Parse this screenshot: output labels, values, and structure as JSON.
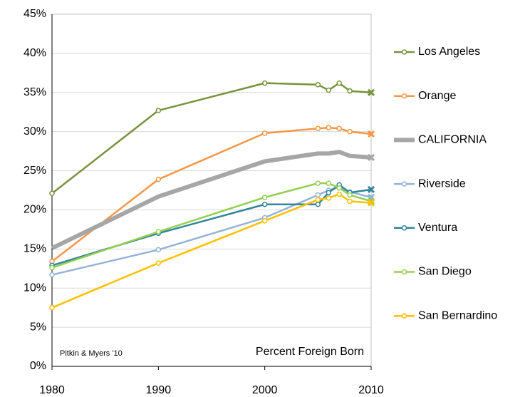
{
  "chart_data": {
    "type": "line",
    "annotations": [
      "Pitkin & Myers '10",
      "Percent Foreign Born"
    ],
    "x": [
      1980,
      1990,
      2000,
      2005,
      2006,
      2007,
      2008,
      2010
    ],
    "xlim": [
      1980,
      2010
    ],
    "xticks": [
      1980,
      1990,
      2000,
      2010
    ],
    "ylim": [
      0,
      45
    ],
    "yticks": [
      {
        "value": 0,
        "label": "0%"
      },
      {
        "value": 5,
        "label": "5%"
      },
      {
        "value": 10,
        "label": "10%"
      },
      {
        "value": 15,
        "label": "15%"
      },
      {
        "value": 20,
        "label": "20%"
      },
      {
        "value": 25,
        "label": "25%"
      },
      {
        "value": 30,
        "label": "30%"
      },
      {
        "value": 35,
        "label": "35%"
      },
      {
        "value": 40,
        "label": "40%"
      },
      {
        "value": 45,
        "label": "45%"
      }
    ],
    "grid": true,
    "legend": "right",
    "series": [
      {
        "name": "Los Angeles",
        "color": "#77933c",
        "line_width": 2.5,
        "values": [
          22.1,
          32.7,
          36.2,
          36.0,
          35.3,
          36.2,
          35.2,
          35.0
        ]
      },
      {
        "name": "Orange",
        "color": "#f79646",
        "line_width": 2.5,
        "values": [
          13.4,
          23.9,
          29.8,
          30.4,
          30.5,
          30.4,
          30.0,
          29.7
        ]
      },
      {
        "name": "CALIFORNIA",
        "color": "#a6a6a6",
        "line_width": 6,
        "values": [
          15.1,
          21.7,
          26.2,
          27.2,
          27.2,
          27.4,
          26.9,
          26.7
        ]
      },
      {
        "name": "Riverside",
        "color": "#95b3d7",
        "line_width": 2.5,
        "values": [
          11.7,
          14.9,
          19.0,
          21.9,
          22.5,
          22.9,
          22.3,
          21.6
        ]
      },
      {
        "name": "Ventura",
        "color": "#31859c",
        "line_width": 2.5,
        "values": [
          12.9,
          17.0,
          20.7,
          20.7,
          22.2,
          23.2,
          22.2,
          22.6
        ]
      },
      {
        "name": "San Diego",
        "color": "#92d050",
        "line_width": 2.5,
        "values": [
          12.6,
          17.2,
          21.6,
          23.4,
          23.4,
          22.8,
          21.9,
          21.1
        ]
      },
      {
        "name": "San Bernardino",
        "color": "#ffc000",
        "line_width": 2.5,
        "values": [
          7.5,
          13.2,
          18.6,
          21.3,
          21.5,
          22.0,
          21.1,
          20.9
        ]
      }
    ]
  }
}
